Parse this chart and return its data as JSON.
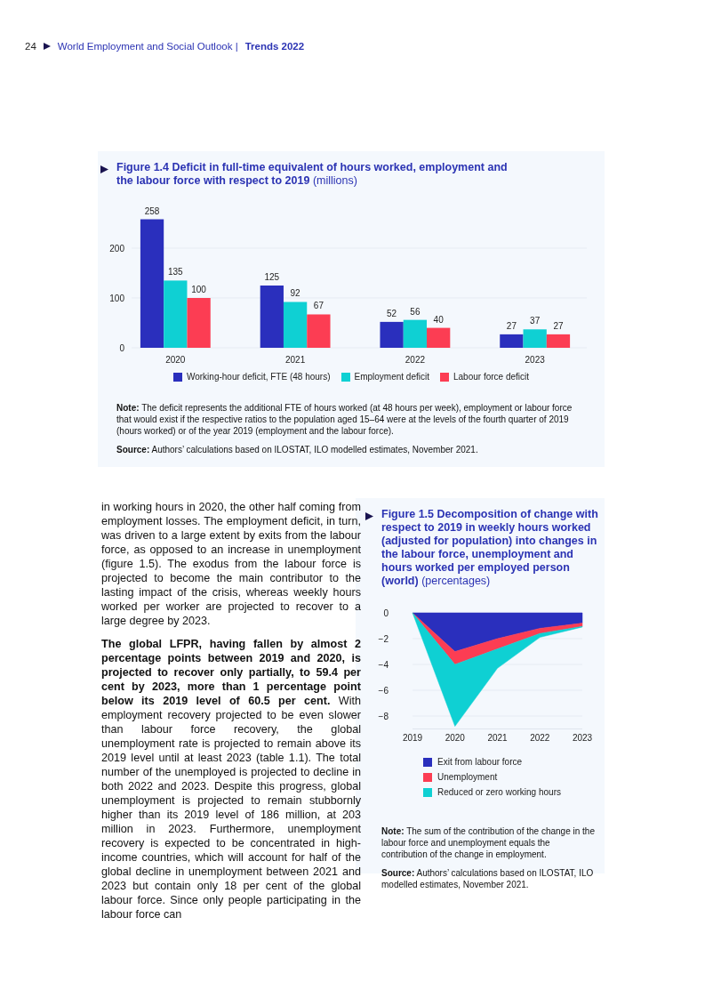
{
  "chart_data": [
    {
      "type": "bar",
      "title": "Figure 1.4  Deficit in full-time equivalent of hours worked, employment and the labour force with respect to 2019",
      "subtitle": "(millions)",
      "categories": [
        "2020",
        "2021",
        "2022",
        "2023"
      ],
      "series": [
        {
          "name": "Working-hour deficit, FTE (48 hours)",
          "color": "#2a2fbd",
          "values": [
            258,
            125,
            52,
            27
          ]
        },
        {
          "name": "Employment deficit",
          "color": "#0fd0d3",
          "values": [
            135,
            92,
            56,
            37
          ]
        },
        {
          "name": "Labour force deficit",
          "color": "#fc3d53",
          "values": [
            100,
            67,
            40,
            27
          ]
        }
      ],
      "ylim": [
        0,
        260
      ],
      "yticks": [
        0,
        100,
        200
      ],
      "grid": "y",
      "legend": "bottom",
      "data_labels": true,
      "annotations": [
        "Note: The deficit represents the additional FTE of hours worked (at 48 hours per week), employment or labour force that would exist if the respective ratios to the population aged 15–64 were at the levels of the fourth quarter of 2019 (hours worked) or of the year 2019 (employment and the labour force).",
        "Source: Authors’ calculations based on ILOSTAT, ILO modelled estimates, November 2021."
      ]
    },
    {
      "type": "area",
      "stacked": true,
      "title": "Figure 1.5  Decomposition of change with respect to 2019 in weekly hours worked (adjusted for population) into changes in the labour force, unemployment and hours worked per employed person (world)",
      "subtitle": "(percentages)",
      "x": [
        2019,
        2020,
        2021,
        2022,
        2023
      ],
      "series": [
        {
          "name": "Exit from labour force",
          "color": "#2a2fbd",
          "values": [
            0,
            -3.0,
            -2.0,
            -1.2,
            -0.8
          ]
        },
        {
          "name": "Unemployment",
          "color": "#fc3d53",
          "values": [
            0,
            -1.0,
            -0.8,
            -0.4,
            -0.25
          ]
        },
        {
          "name": "Reduced or zero working hours",
          "color": "#0fd0d3",
          "values": [
            0,
            -4.8,
            -1.5,
            -0.3,
            -0.05
          ]
        }
      ],
      "xlim": [
        2019,
        2023
      ],
      "xticks": [
        2019,
        2020,
        2021,
        2022,
        2023
      ],
      "ylim": [
        -9,
        0
      ],
      "yticks": [
        0,
        {
          "value": -2,
          "label": "−2"
        },
        {
          "value": -4,
          "label": "−4"
        },
        {
          "value": -6,
          "label": "−6"
        },
        {
          "value": -8,
          "label": "−8"
        }
      ],
      "grid": "y",
      "legend": "bottom",
      "annotations": [
        "Note: The sum of the contribution of the change in the labour force and unemployment equals the contribution of the change in employment.",
        "Source: Authors’ calculations based on ILOSTAT, ILO modelled estimates, November 2021."
      ]
    },
    {
      "type": "other",
      "annotations": [
        "24",
        "World Employment and Social Outlook |",
        "Trends 2022",
        "in working hours in 2020, the other half coming from employment losses. The employment deficit, in turn, was driven to a large extent by exits from the labour force, as opposed to an increase in unemployment (figure 1.5). The exodus from the labour force is projected to become the main contributor to the lasting impact of the crisis, whereas weekly hours worked per worker are projected to recover to a large degree by 2023.",
        "The global LFPR, having fallen by almost 2 percentage points between 2019 and 2020, is projected to recover only partially, to 59.4 per cent by 2023, more than 1 percentage point below its 2019 level of 60.5 per cent.",
        "With employment recovery projected to be even slower than labour force recovery, the global unemployment rate is projected to remain above its 2019 level until at least 2023 (table 1.1). The total number of the unemployed is projected to decline in both 2022 and 2023. Despite this progress, global unemployment is projected to remain stubbornly higher than its 2019 level of 186 million, at 203 million in 2023. Furthermore, unemployment recovery is expected to be concentrated in high-income countries, which will account for half of the global decline in unemployment between 2021 and 2023 but contain only 18 per cent of the global labour force. Since only people participating in the labour force can"
      ]
    }
  ]
}
